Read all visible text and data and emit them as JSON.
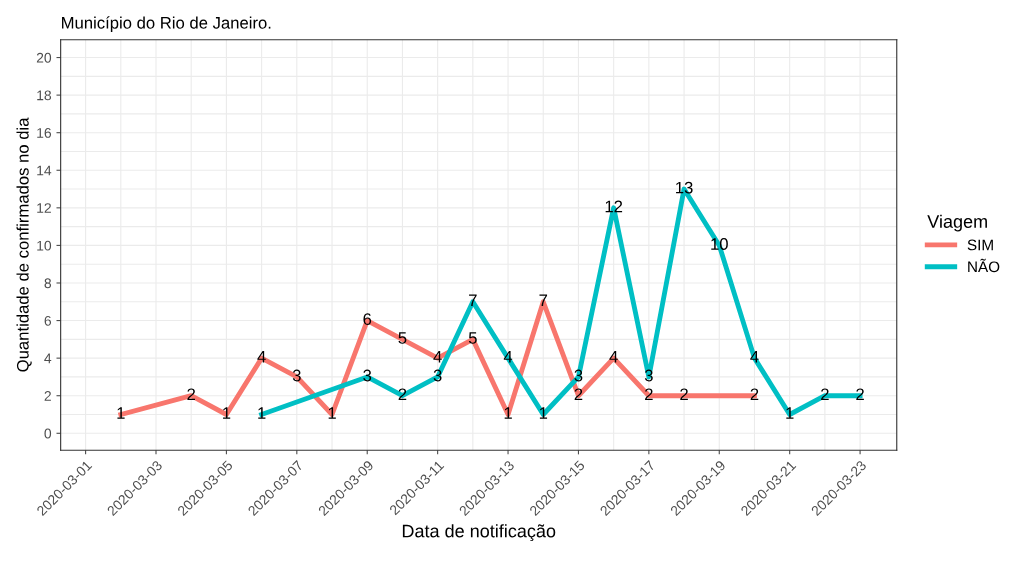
{
  "chart_data": {
    "type": "line",
    "title": "Município do Rio de Janeiro.",
    "xlabel": "Data de notificação",
    "ylabel": "Quantidade de confirmados no dia",
    "legend_title": "Viagem",
    "legend": "right",
    "grid": true,
    "data_labels": true,
    "marker": "none",
    "line_style": "solid",
    "xlim": [
      "2020-02-29T07:00",
      "2020-03-24T01:00"
    ],
    "xticks": [
      "2020-03-01",
      "2020-03-03",
      "2020-03-05",
      "2020-03-07",
      "2020-03-09",
      "2020-03-11",
      "2020-03-13",
      "2020-03-15",
      "2020-03-17",
      "2020-03-19",
      "2020-03-21",
      "2020-03-23"
    ],
    "ylim": [
      -0.9,
      20.95
    ],
    "yticks": [
      0,
      2,
      4,
      6,
      8,
      10,
      12,
      14,
      16,
      18,
      20
    ],
    "series": [
      {
        "name": "SIM",
        "color": "#f8766d",
        "x": [
          "2020-03-02",
          "2020-03-04",
          "2020-03-05",
          "2020-03-06",
          "2020-03-07",
          "2020-03-08",
          "2020-03-09",
          "2020-03-10",
          "2020-03-11",
          "2020-03-12",
          "2020-03-13",
          "2020-03-14",
          "2020-03-15",
          "2020-03-16",
          "2020-03-17",
          "2020-03-18",
          "2020-03-20"
        ],
        "values": [
          1,
          2,
          1,
          4,
          3,
          1,
          6,
          5,
          4,
          5,
          1,
          7,
          2,
          4,
          2,
          2,
          2
        ]
      },
      {
        "name": "NÃO",
        "color": "#00bfc4",
        "x": [
          "2020-03-06",
          "2020-03-09",
          "2020-03-10",
          "2020-03-11",
          "2020-03-12",
          "2020-03-13",
          "2020-03-14",
          "2020-03-15",
          "2020-03-16",
          "2020-03-17",
          "2020-03-18",
          "2020-03-19",
          "2020-03-20",
          "2020-03-21",
          "2020-03-22",
          "2020-03-23"
        ],
        "values": [
          1,
          3,
          2,
          3,
          7,
          4,
          1,
          3,
          12,
          3,
          13,
          10,
          4,
          1,
          2,
          2
        ]
      }
    ]
  }
}
